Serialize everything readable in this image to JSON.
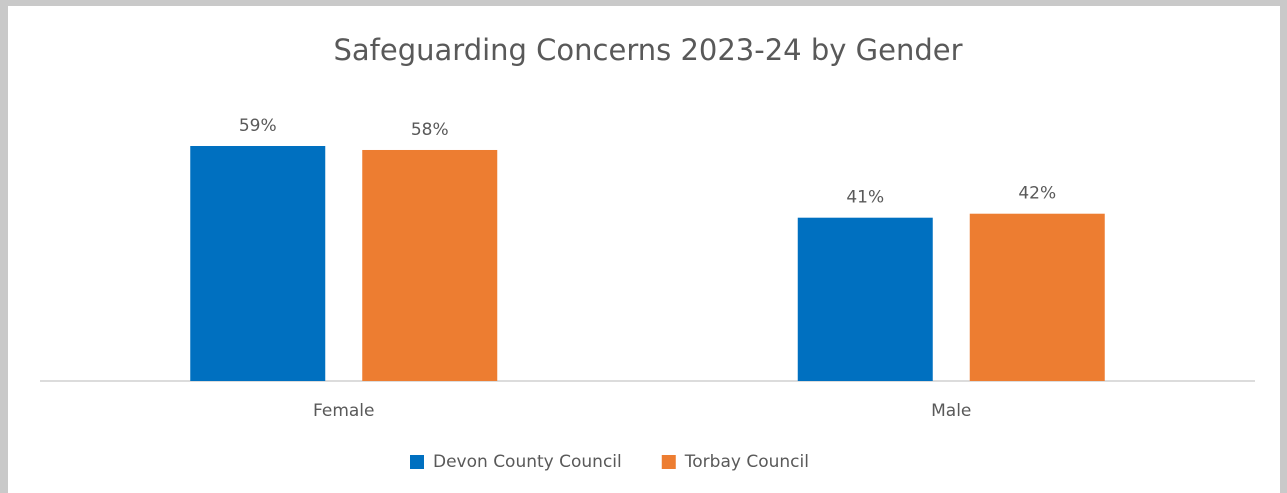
{
  "chart_data": {
    "type": "bar",
    "title": "Safeguarding Concerns 2023-24 by Gender",
    "categories": [
      "Female",
      "Male"
    ],
    "series": [
      {
        "name": "Devon County Council",
        "color": "#0070c0",
        "values": [
          59,
          41
        ],
        "value_labels": [
          "59%",
          "41%"
        ]
      },
      {
        "name": "Torbay Council",
        "color": "#ed7d31",
        "values": [
          58,
          42
        ],
        "value_labels": [
          "58%",
          "42%"
        ]
      }
    ],
    "legend": "bottom"
  }
}
